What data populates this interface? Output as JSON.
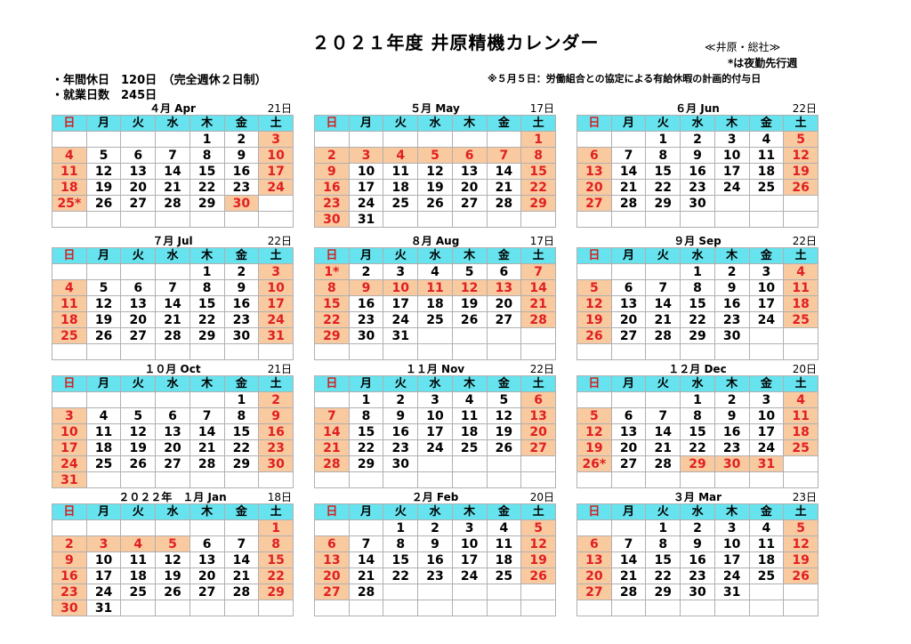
{
  "title": "２０２１年度 井原精機カレンダー",
  "office": "≪井原・総社≫",
  "star_note": "*は夜勤先行週",
  "holidays_label": "・年間休日　120日　（完全週休２日制）",
  "workdays_label": "・就業日数　245日",
  "note": "※５月５日：労働組合との協定による有給休暇の計画的付与日",
  "weekdays": [
    "日",
    "月",
    "火",
    "水",
    "木",
    "金",
    "土"
  ],
  "colors": {
    "header": "#66e3ee",
    "holiday_bg": "#f9c9a0",
    "holiday_text": "#e02020"
  },
  "months": [
    {
      "title": "４月 Apr",
      "count": "21日",
      "start": 4,
      "days": 30,
      "holidays": [
        3,
        4,
        10,
        11,
        17,
        18,
        24,
        25,
        30
      ],
      "star": [
        25
      ]
    },
    {
      "title": "５月 May",
      "count": "17日",
      "start": 6,
      "days": 31,
      "holidays": [
        1,
        2,
        3,
        4,
        5,
        6,
        7,
        8,
        9,
        15,
        16,
        22,
        23,
        29,
        30
      ],
      "star": []
    },
    {
      "title": "６月 Jun",
      "count": "22日",
      "start": 2,
      "days": 30,
      "holidays": [
        5,
        6,
        12,
        13,
        19,
        20,
        26,
        27
      ],
      "star": []
    },
    {
      "title": "７月 Jul",
      "count": "22日",
      "start": 4,
      "days": 31,
      "holidays": [
        3,
        4,
        10,
        11,
        17,
        18,
        24,
        25,
        31
      ],
      "star": []
    },
    {
      "title": "８月 Aug",
      "count": "17日",
      "start": 0,
      "days": 31,
      "holidays": [
        1,
        7,
        8,
        9,
        10,
        11,
        12,
        13,
        14,
        15,
        21,
        22,
        28,
        29
      ],
      "star": [
        1
      ]
    },
    {
      "title": "９月 Sep",
      "count": "22日",
      "start": 3,
      "days": 30,
      "holidays": [
        4,
        5,
        11,
        12,
        18,
        19,
        25,
        26
      ],
      "star": []
    },
    {
      "title": "１０月 Oct",
      "count": "21日",
      "start": 5,
      "days": 31,
      "holidays": [
        2,
        3,
        9,
        10,
        16,
        17,
        23,
        24,
        30,
        31
      ],
      "star": []
    },
    {
      "title": "１１月 Nov",
      "count": "22日",
      "start": 1,
      "days": 30,
      "holidays": [
        6,
        7,
        13,
        14,
        20,
        21,
        27,
        28
      ],
      "star": []
    },
    {
      "title": "１２月 Dec",
      "count": "20日",
      "start": 3,
      "days": 31,
      "holidays": [
        4,
        5,
        11,
        12,
        18,
        19,
        25,
        26,
        29,
        30,
        31
      ],
      "star": [
        26
      ]
    },
    {
      "title": "２０２２年　１月 Jan",
      "count": "18日",
      "start": 6,
      "days": 31,
      "holidays": [
        1,
        2,
        3,
        4,
        5,
        8,
        9,
        15,
        16,
        22,
        23,
        29,
        30
      ],
      "star": []
    },
    {
      "title": "２月 Feb",
      "count": "20日",
      "start": 2,
      "days": 28,
      "holidays": [
        5,
        6,
        12,
        13,
        19,
        20,
        26,
        27
      ],
      "star": []
    },
    {
      "title": "３月 Mar",
      "count": "23日",
      "start": 2,
      "days": 31,
      "holidays": [
        5,
        6,
        12,
        13,
        19,
        20,
        26,
        27
      ],
      "star": []
    }
  ]
}
